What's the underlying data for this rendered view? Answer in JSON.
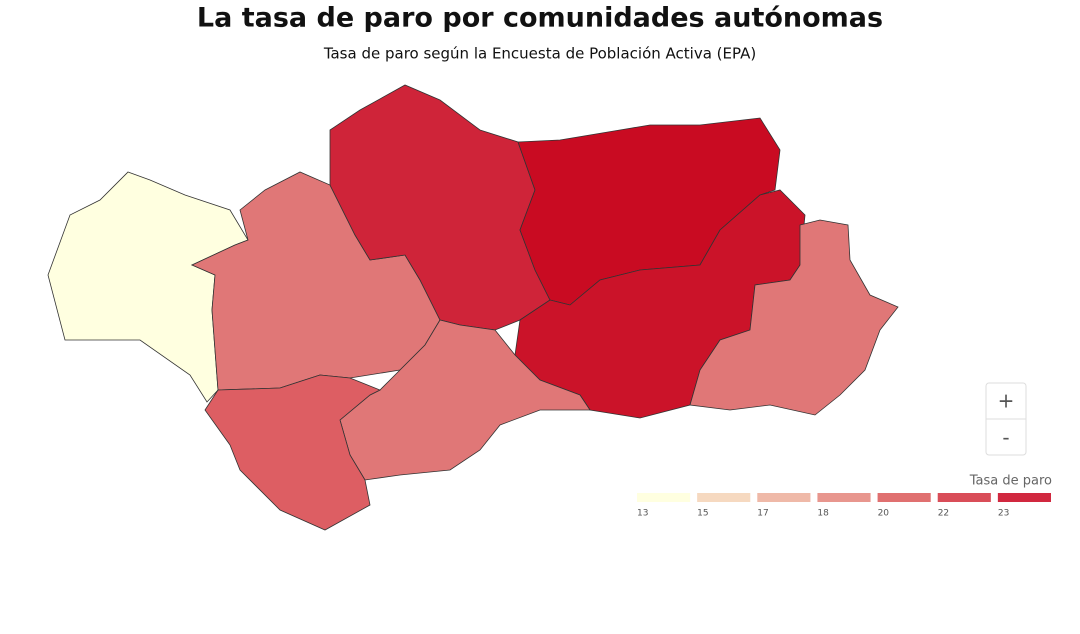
{
  "chart_data": {
    "type": "choropleth",
    "title": "La tasa de paro por comunidades autónomas",
    "subtitle": "Tasa de paro según la Encuesta de Población Activa (EPA)",
    "legend_title": "Tasa de paro",
    "legend": [
      {
        "value": 13,
        "color": "#ffffe0"
      },
      {
        "value": 15,
        "color": "#f6d9c0"
      },
      {
        "value": 17,
        "color": "#efb9a8"
      },
      {
        "value": 18,
        "color": "#e8968e"
      },
      {
        "value": 20,
        "color": "#e07070"
      },
      {
        "value": 22,
        "color": "#d94d58"
      },
      {
        "value": 23,
        "color": "#d1283f"
      }
    ],
    "regions": [
      {
        "value": 13,
        "color": "#ffffe0"
      },
      {
        "value": 20,
        "color": "#e07777"
      },
      {
        "value": 23,
        "color": "#cf2439"
      },
      {
        "value": 24.5,
        "color": "#c90b22"
      },
      {
        "value": 24,
        "color": "#cb1329"
      },
      {
        "value": 20,
        "color": "#e07777"
      },
      {
        "value": 20,
        "color": "#e07777"
      },
      {
        "value": 21,
        "color": "#dd5e63"
      }
    ],
    "controls": {
      "zoom_in": "+",
      "zoom_out": "-"
    }
  }
}
